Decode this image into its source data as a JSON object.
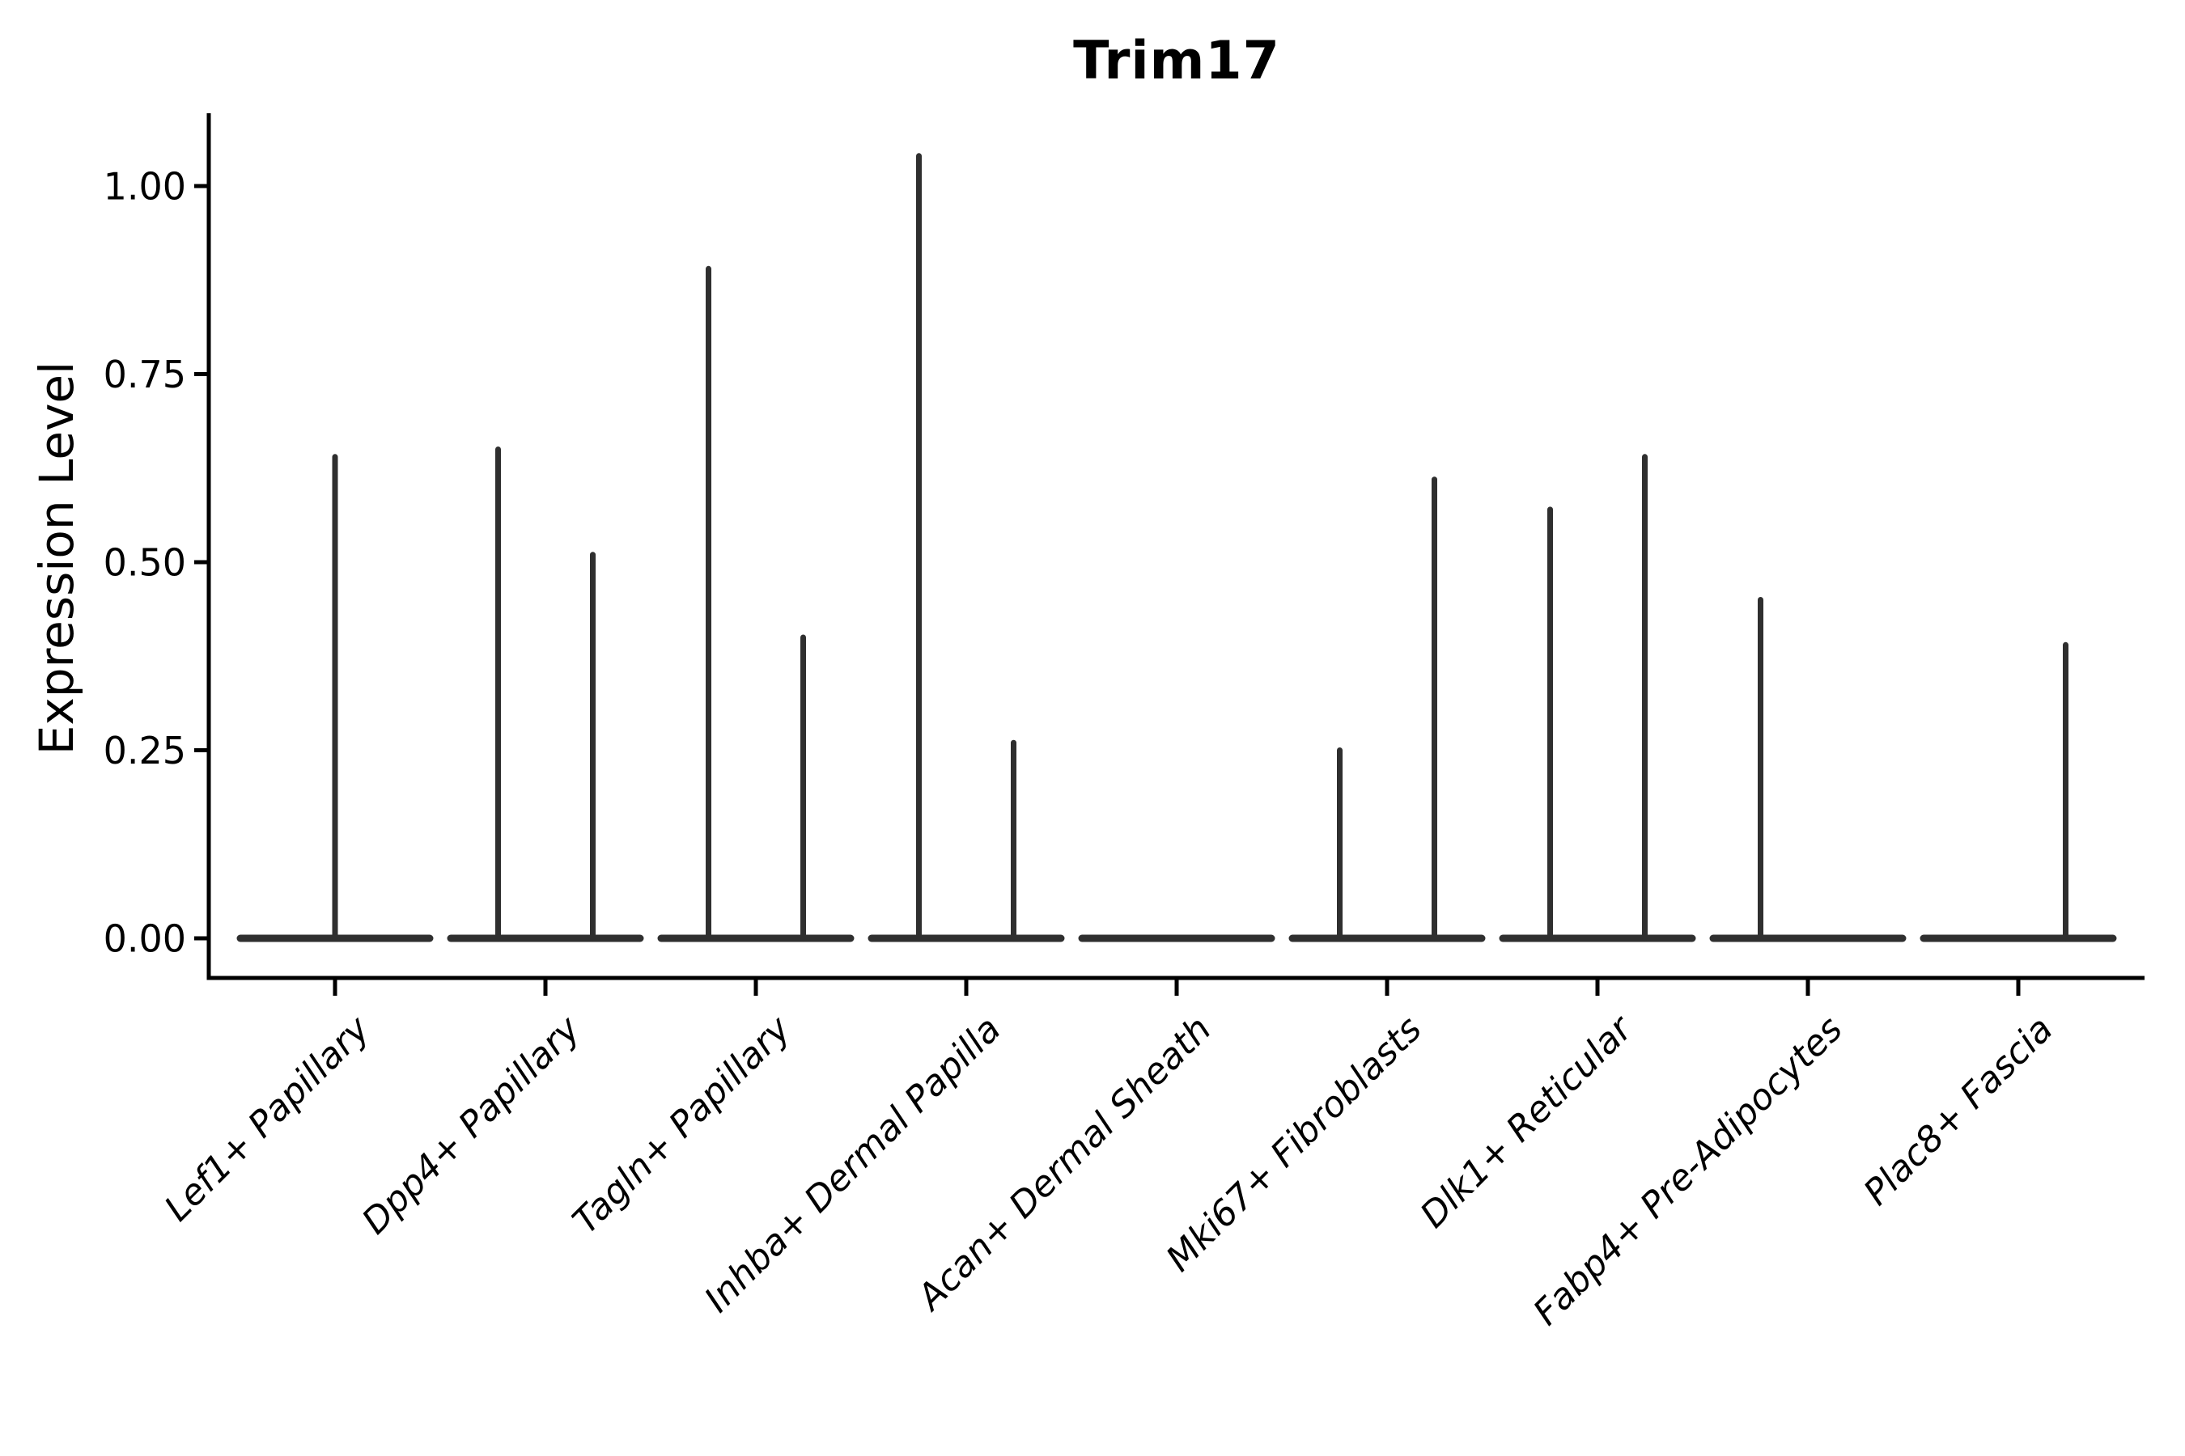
{
  "chart_data": {
    "type": "violin",
    "title": "Trim17",
    "ylabel": "Expression Level",
    "xlabel": "",
    "ylim": [
      0,
      1.1
    ],
    "yticks": [
      "0.00",
      "0.25",
      "0.50",
      "0.75",
      "1.00"
    ],
    "ytick_values": [
      0,
      0.25,
      0.5,
      0.75,
      1.0
    ],
    "grid": false,
    "legend": "none",
    "categories": [
      "Lef1+ Papillary",
      "Dpp4+ Papillary",
      "Tagln+ Papillary",
      "Inhba+ Dermal Papilla",
      "Acan+ Dermal Sheath",
      "Mki67+ Fibroblasts",
      "Dlk1+ Reticular",
      "Fabp4+ Pre-Adipocytes",
      "Plac8+ Fascia"
    ],
    "violins": [
      {
        "category": "Lef1+ Papillary",
        "baseline_value": 0,
        "spikes": [
          {
            "position": "center",
            "value": 0.64
          }
        ]
      },
      {
        "category": "Dpp4+ Papillary",
        "baseline_value": 0,
        "spikes": [
          {
            "position": "left",
            "value": 0.65
          },
          {
            "position": "right",
            "value": 0.51
          }
        ]
      },
      {
        "category": "Tagln+ Papillary",
        "baseline_value": 0,
        "spikes": [
          {
            "position": "left",
            "value": 0.89
          },
          {
            "position": "right",
            "value": 0.4
          }
        ]
      },
      {
        "category": "Inhba+ Dermal Papilla",
        "baseline_value": 0,
        "spikes": [
          {
            "position": "left",
            "value": 1.04
          },
          {
            "position": "right",
            "value": 0.26
          }
        ]
      },
      {
        "category": "Acan+ Dermal Sheath",
        "baseline_value": 0,
        "spikes": []
      },
      {
        "category": "Mki67+ Fibroblasts",
        "baseline_value": 0,
        "spikes": [
          {
            "position": "left",
            "value": 0.25
          },
          {
            "position": "right",
            "value": 0.61
          }
        ]
      },
      {
        "category": "Dlk1+ Reticular",
        "baseline_value": 0,
        "spikes": [
          {
            "position": "left",
            "value": 0.57
          },
          {
            "position": "right",
            "value": 0.64
          }
        ]
      },
      {
        "category": "Fabp4+ Pre-Adipocytes",
        "baseline_value": 0,
        "spikes": [
          {
            "position": "left",
            "value": 0.45
          }
        ]
      },
      {
        "category": "Plac8+ Fascia",
        "baseline_value": 0,
        "spikes": [
          {
            "position": "right",
            "value": 0.39
          }
        ]
      }
    ],
    "style": {
      "violin_color": "#2f2f2f",
      "axis_color": "#000000",
      "text_color": "#000000",
      "x_tick_rotation_deg": 45,
      "x_tick_italic": true,
      "title_bold": true,
      "violin_width_units": 0.9,
      "dodge_offset_units": 0.225
    }
  }
}
